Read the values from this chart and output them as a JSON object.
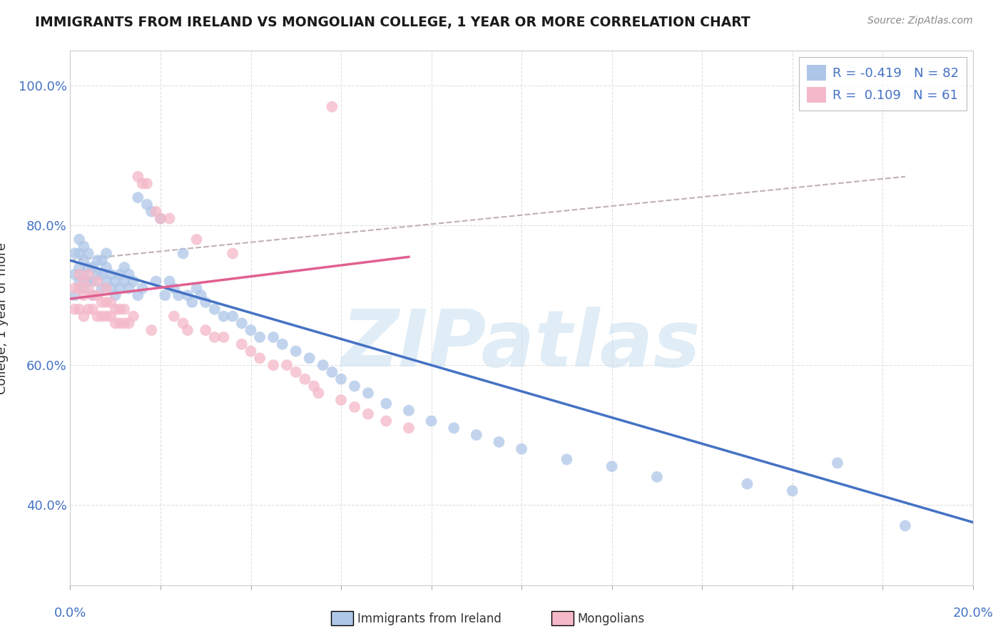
{
  "title": "IMMIGRANTS FROM IRELAND VS MONGOLIAN COLLEGE, 1 YEAR OR MORE CORRELATION CHART",
  "source_text": "Source: ZipAtlas.com",
  "ylabel": "College, 1 year or more",
  "watermark": "ZIPatlas",
  "legend_line1": "R = -0.419   N = 82",
  "legend_line2": "R =  0.109   N = 61",
  "legend_color1": "#aec6e8",
  "legend_color2": "#f4b8c8",
  "xlim": [
    0.0,
    0.2
  ],
  "ylim": [
    0.285,
    1.05
  ],
  "ytick_vals": [
    0.4,
    0.6,
    0.8,
    1.0
  ],
  "ytick_labels": [
    "40.0%",
    "60.0%",
    "80.0%",
    "100.0%"
  ],
  "blue_scatter_x": [
    0.001,
    0.001,
    0.001,
    0.002,
    0.002,
    0.002,
    0.002,
    0.003,
    0.003,
    0.003,
    0.003,
    0.004,
    0.004,
    0.004,
    0.005,
    0.005,
    0.005,
    0.006,
    0.006,
    0.007,
    0.007,
    0.007,
    0.008,
    0.008,
    0.008,
    0.009,
    0.009,
    0.01,
    0.01,
    0.011,
    0.011,
    0.012,
    0.012,
    0.013,
    0.013,
    0.014,
    0.015,
    0.015,
    0.016,
    0.017,
    0.018,
    0.019,
    0.02,
    0.021,
    0.022,
    0.023,
    0.024,
    0.025,
    0.026,
    0.027,
    0.028,
    0.029,
    0.03,
    0.032,
    0.034,
    0.036,
    0.038,
    0.04,
    0.042,
    0.045,
    0.047,
    0.05,
    0.053,
    0.056,
    0.058,
    0.06,
    0.063,
    0.066,
    0.07,
    0.075,
    0.08,
    0.085,
    0.09,
    0.095,
    0.1,
    0.11,
    0.12,
    0.13,
    0.15,
    0.16,
    0.17,
    0.185
  ],
  "blue_scatter_y": [
    0.7,
    0.73,
    0.76,
    0.72,
    0.74,
    0.76,
    0.78,
    0.71,
    0.73,
    0.75,
    0.77,
    0.72,
    0.74,
    0.76,
    0.7,
    0.72,
    0.74,
    0.73,
    0.75,
    0.71,
    0.73,
    0.75,
    0.72,
    0.74,
    0.76,
    0.71,
    0.73,
    0.7,
    0.72,
    0.71,
    0.73,
    0.72,
    0.74,
    0.71,
    0.73,
    0.72,
    0.84,
    0.7,
    0.71,
    0.83,
    0.82,
    0.72,
    0.81,
    0.7,
    0.72,
    0.71,
    0.7,
    0.76,
    0.7,
    0.69,
    0.71,
    0.7,
    0.69,
    0.68,
    0.67,
    0.67,
    0.66,
    0.65,
    0.64,
    0.64,
    0.63,
    0.62,
    0.61,
    0.6,
    0.59,
    0.58,
    0.57,
    0.56,
    0.545,
    0.535,
    0.52,
    0.51,
    0.5,
    0.49,
    0.48,
    0.465,
    0.455,
    0.44,
    0.43,
    0.42,
    0.46,
    0.37
  ],
  "pink_scatter_x": [
    0.001,
    0.001,
    0.002,
    0.002,
    0.002,
    0.003,
    0.003,
    0.003,
    0.004,
    0.004,
    0.004,
    0.005,
    0.005,
    0.006,
    0.006,
    0.006,
    0.007,
    0.007,
    0.008,
    0.008,
    0.008,
    0.009,
    0.009,
    0.01,
    0.01,
    0.011,
    0.011,
    0.012,
    0.012,
    0.013,
    0.014,
    0.015,
    0.016,
    0.017,
    0.018,
    0.019,
    0.02,
    0.022,
    0.023,
    0.025,
    0.026,
    0.028,
    0.03,
    0.032,
    0.034,
    0.036,
    0.038,
    0.04,
    0.042,
    0.045,
    0.048,
    0.05,
    0.052,
    0.054,
    0.055,
    0.058,
    0.06,
    0.063,
    0.066,
    0.07,
    0.075
  ],
  "pink_scatter_y": [
    0.68,
    0.71,
    0.68,
    0.71,
    0.73,
    0.67,
    0.7,
    0.72,
    0.68,
    0.71,
    0.73,
    0.68,
    0.7,
    0.67,
    0.7,
    0.72,
    0.67,
    0.69,
    0.67,
    0.69,
    0.71,
    0.67,
    0.69,
    0.66,
    0.68,
    0.66,
    0.68,
    0.66,
    0.68,
    0.66,
    0.67,
    0.87,
    0.86,
    0.86,
    0.65,
    0.82,
    0.81,
    0.81,
    0.67,
    0.66,
    0.65,
    0.78,
    0.65,
    0.64,
    0.64,
    0.76,
    0.63,
    0.62,
    0.61,
    0.6,
    0.6,
    0.59,
    0.58,
    0.57,
    0.56,
    0.97,
    0.55,
    0.54,
    0.53,
    0.52,
    0.51
  ],
  "blue_line_x": [
    0.0,
    0.2
  ],
  "blue_line_y": [
    0.75,
    0.375
  ],
  "pink_line_x": [
    0.0,
    0.075
  ],
  "pink_line_y": [
    0.695,
    0.755
  ],
  "dash_line_x": [
    0.0,
    0.185
  ],
  "dash_line_y": [
    0.75,
    0.87
  ],
  "title_color": "#1a1a1a",
  "blue_color": "#aec6e8",
  "pink_color": "#f4b8c8",
  "blue_line_color": "#4472c4",
  "pink_line_color": "#e06090",
  "dash_line_color": "#c0b0b0",
  "watermark_color": "#c8dff0",
  "axis_label_color": "#4472c4",
  "grid_color": "#e0e0e0",
  "background_color": "#ffffff"
}
